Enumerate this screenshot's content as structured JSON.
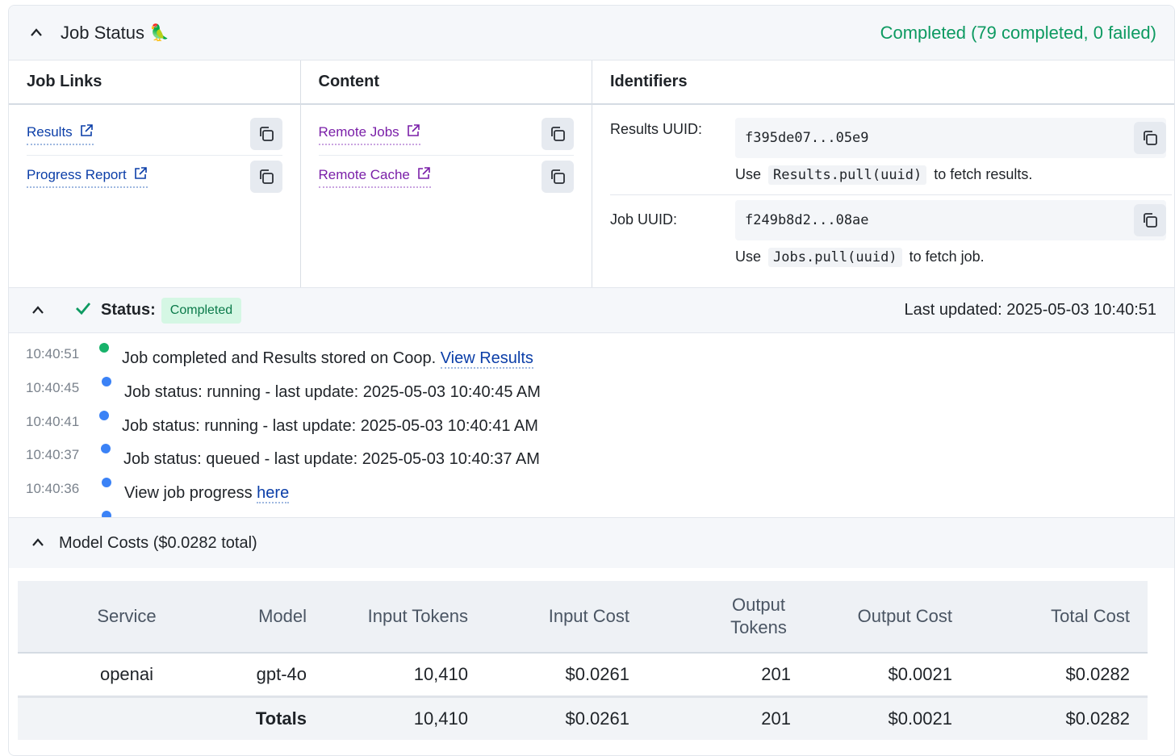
{
  "header": {
    "title": "Job Status",
    "emoji": "🦜",
    "status": "Completed (79 completed, 0 failed)"
  },
  "columns": {
    "job_links": {
      "title": "Job Links",
      "items": [
        {
          "label": "Results"
        },
        {
          "label": "Progress Report"
        }
      ]
    },
    "content": {
      "title": "Content",
      "items": [
        {
          "label": "Remote Jobs"
        },
        {
          "label": "Remote Cache"
        }
      ]
    },
    "identifiers": {
      "title": "Identifiers",
      "items": [
        {
          "label": "Results UUID:",
          "value": "f395de07...05e9",
          "hint_pre": "Use",
          "hint_code": "Results.pull(uuid)",
          "hint_post": "to fetch results."
        },
        {
          "label": "Job UUID:",
          "value": "f249b8d2...08ae",
          "hint_pre": "Use",
          "hint_code": "Jobs.pull(uuid)",
          "hint_post": "to fetch job."
        }
      ]
    }
  },
  "status_bar": {
    "label": "Status:",
    "badge": "Completed",
    "updated": "Last updated: 2025-05-03 10:40:51"
  },
  "log": [
    {
      "time": "10:40:51",
      "color": "#17b26a",
      "text": "Job completed and Results stored on Coop.",
      "link": "View Results"
    },
    {
      "time": "10:40:45",
      "color": "#3b82f6",
      "text": "Job status: running - last update: 2025-05-03 10:40:45 AM",
      "link": ""
    },
    {
      "time": "10:40:41",
      "color": "#3b82f6",
      "text": "Job status: running - last update: 2025-05-03 10:40:41 AM",
      "link": ""
    },
    {
      "time": "10:40:37",
      "color": "#3b82f6",
      "text": "Job status: queued - last update: 2025-05-03 10:40:37 AM",
      "link": ""
    },
    {
      "time": "10:40:36",
      "color": "#3b82f6",
      "text": "View job progress",
      "link": "here"
    }
  ],
  "model_costs": {
    "title": "Model Costs ($0.0282 total)",
    "headers": [
      "Service",
      "Model",
      "Input Tokens",
      "Input Cost",
      "Output Tokens",
      "Output Cost",
      "Total Cost"
    ],
    "rows": [
      [
        "openai",
        "gpt-4o",
        "10,410",
        "$0.0261",
        "201",
        "$0.0021",
        "$0.0282"
      ]
    ],
    "totals": [
      "",
      "Totals",
      "10,410",
      "$0.0261",
      "201",
      "$0.0021",
      "$0.0282"
    ]
  }
}
